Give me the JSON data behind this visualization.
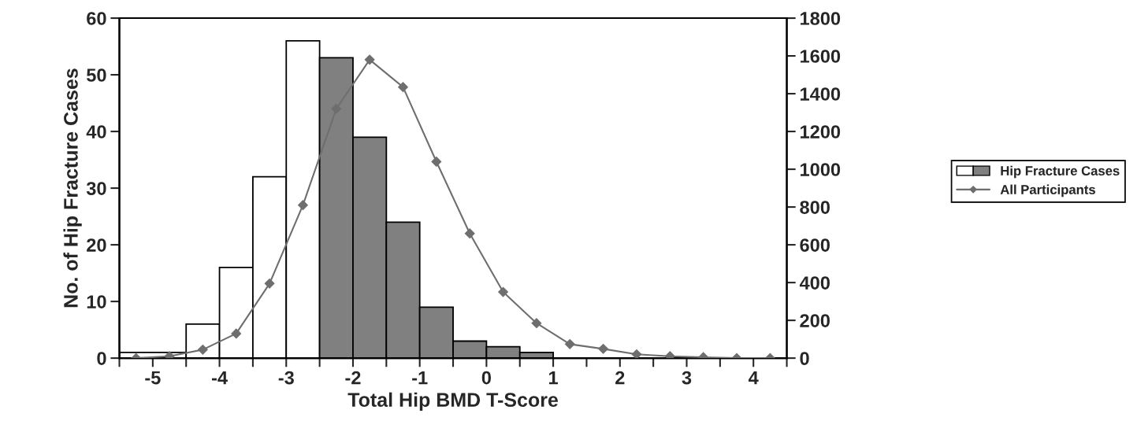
{
  "chart_data": {
    "type": "histogram",
    "xlabel": "Total Hip BMD T-Score",
    "ylabel": "No. of Hip Fracture Cases",
    "bins": [
      -5.5,
      -4.5,
      -4,
      -3.5,
      -3,
      -2.5,
      -2,
      -1.5,
      -1,
      -0.5,
      0,
      0.5,
      1
    ],
    "xlim": [
      -5.5,
      4.5
    ],
    "xticks": [
      {
        "value": -5.5,
        "label": null
      },
      -5,
      {
        "value": -4.5,
        "label": null
      },
      -4,
      {
        "value": -3.5,
        "label": null
      },
      -3,
      {
        "value": -2.5,
        "label": null
      },
      -2,
      {
        "value": -1.5,
        "label": null
      },
      -1,
      {
        "value": -0.5,
        "label": null
      },
      0,
      {
        "value": 0.5,
        "label": null
      },
      1,
      {
        "value": 1.5,
        "label": null
      },
      2,
      {
        "value": 2.5,
        "label": null
      },
      3,
      {
        "value": 3.5,
        "label": null
      },
      4,
      {
        "value": 4.5,
        "label": null
      }
    ],
    "ylim": [
      0,
      60
    ],
    "yticks": [
      0,
      10,
      20,
      30,
      40,
      50,
      60
    ],
    "y2lim": [
      0,
      1800
    ],
    "y2ticks": [
      0,
      200,
      400,
      600,
      800,
      1000,
      1200,
      1400,
      1600,
      1800
    ],
    "grid": false,
    "legend": "right",
    "series": [
      {
        "name": "Hip Fracture Cases",
        "values": [
          1,
          6,
          16,
          32,
          56,
          53,
          39,
          24,
          9,
          3,
          2,
          1
        ],
        "colors": [
          "#ffffff",
          "#ffffff",
          "#ffffff",
          "#ffffff",
          "#ffffff",
          "#808080",
          "#808080",
          "#808080",
          "#808080",
          "#808080",
          "#808080",
          "#808080"
        ]
      },
      {
        "name": "All Participants",
        "type": "line",
        "axis": "y2",
        "marker": "diamond",
        "color": "#6e6e6e",
        "x": [
          -5.25,
          -4.75,
          -4.25,
          -3.75,
          -3.25,
          -2.75,
          -2.25,
          -1.75,
          -1.25,
          -0.75,
          -0.25,
          0.25,
          0.75,
          1.25,
          1.75,
          2.25,
          2.75,
          3.25,
          3.75,
          4.25
        ],
        "values": [
          0,
          10,
          45,
          130,
          395,
          810,
          1320,
          1580,
          1435,
          1040,
          660,
          350,
          185,
          74,
          49,
          20,
          10,
          5,
          0,
          0
        ]
      }
    ]
  }
}
